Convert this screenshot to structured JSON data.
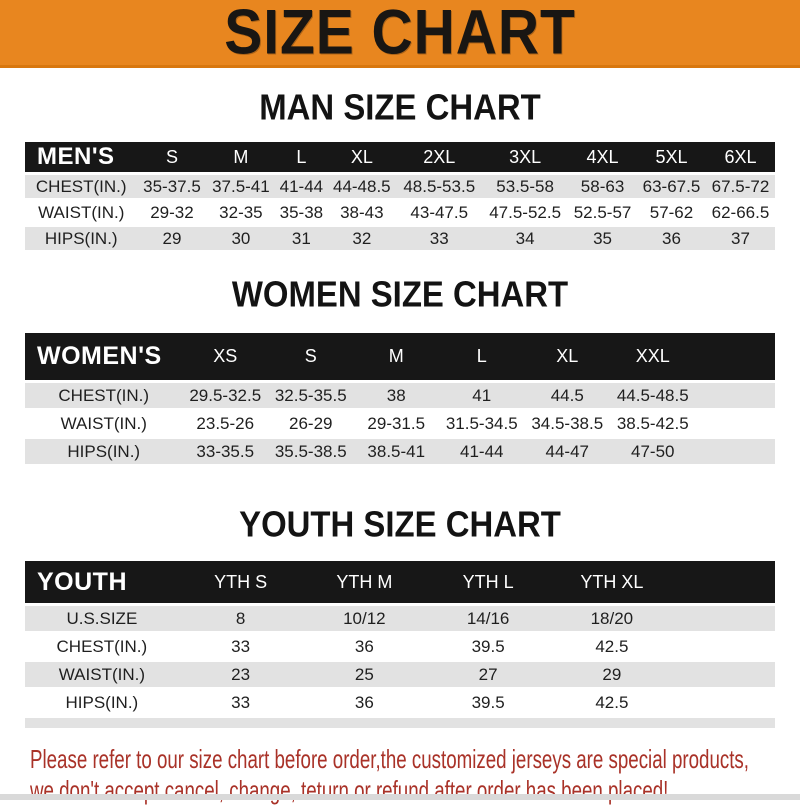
{
  "banner": {
    "title": "SIZE CHART",
    "background_color": "#E8861F",
    "text_color": "#191613"
  },
  "colors": {
    "table_header_bar": "#171717",
    "row_shade": "#E2E2E2",
    "disclaimer_text": "#A93228"
  },
  "sections": [
    {
      "title": "MAN SIZE CHART",
      "header_label": "MEN'S",
      "columns": [
        "S",
        "M",
        "L",
        "XL",
        "2XL",
        "3XL",
        "4XL",
        "5XL",
        "6XL"
      ],
      "rows": [
        {
          "label": "CHEST(IN.)",
          "values": [
            "35-37.5",
            "37.5-41",
            "41-44",
            "44-48.5",
            "48.5-53.5",
            "53.5-58",
            "58-63",
            "63-67.5",
            "67.5-72"
          ]
        },
        {
          "label": "WAIST(IN.)",
          "values": [
            "29-32",
            "32-35",
            "35-38",
            "38-43",
            "43-47.5",
            "47.5-52.5",
            "52.5-57",
            "57-62",
            "62-66.5"
          ]
        },
        {
          "label": "HIPS(IN.)",
          "values": [
            "29",
            "30",
            "31",
            "32",
            "33",
            "34",
            "35",
            "36",
            "37"
          ]
        }
      ]
    },
    {
      "title": "WOMEN SIZE CHART",
      "header_label": "WOMEN'S",
      "columns": [
        "XS",
        "S",
        "M",
        "L",
        "XL",
        "XXL"
      ],
      "rows": [
        {
          "label": "CHEST(IN.)",
          "values": [
            "29.5-32.5",
            "32.5-35.5",
            "38",
            "41",
            "44.5",
            "44.5-48.5"
          ]
        },
        {
          "label": "WAIST(IN.)",
          "values": [
            "23.5-26",
            "26-29",
            "29-31.5",
            "31.5-34.5",
            "34.5-38.5",
            "38.5-42.5"
          ]
        },
        {
          "label": "HIPS(IN.)",
          "values": [
            "33-35.5",
            "35.5-38.5",
            "38.5-41",
            "41-44",
            "44-47",
            "47-50"
          ]
        }
      ]
    },
    {
      "title": "YOUTH SIZE CHART",
      "header_label": "YOUTH",
      "columns": [
        "YTH S",
        "YTH M",
        "YTH L",
        "YTH XL"
      ],
      "rows": [
        {
          "label": "U.S.SIZE",
          "values": [
            "8",
            "10/12",
            "14/16",
            "18/20"
          ]
        },
        {
          "label": "CHEST(IN.)",
          "values": [
            "33",
            "36",
            "39.5",
            "42.5"
          ]
        },
        {
          "label": "WAIST(IN.)",
          "values": [
            "23",
            "25",
            "27",
            "29"
          ]
        },
        {
          "label": "HIPS(IN.)",
          "values": [
            "33",
            "36",
            "39.5",
            "42.5"
          ]
        }
      ]
    }
  ],
  "disclaimer": {
    "line1": "Please refer to our size chart before order,the customized jerseys are special products,",
    "line2": "we don't accept cancel, change, teturn or refund after order has been placed!"
  }
}
